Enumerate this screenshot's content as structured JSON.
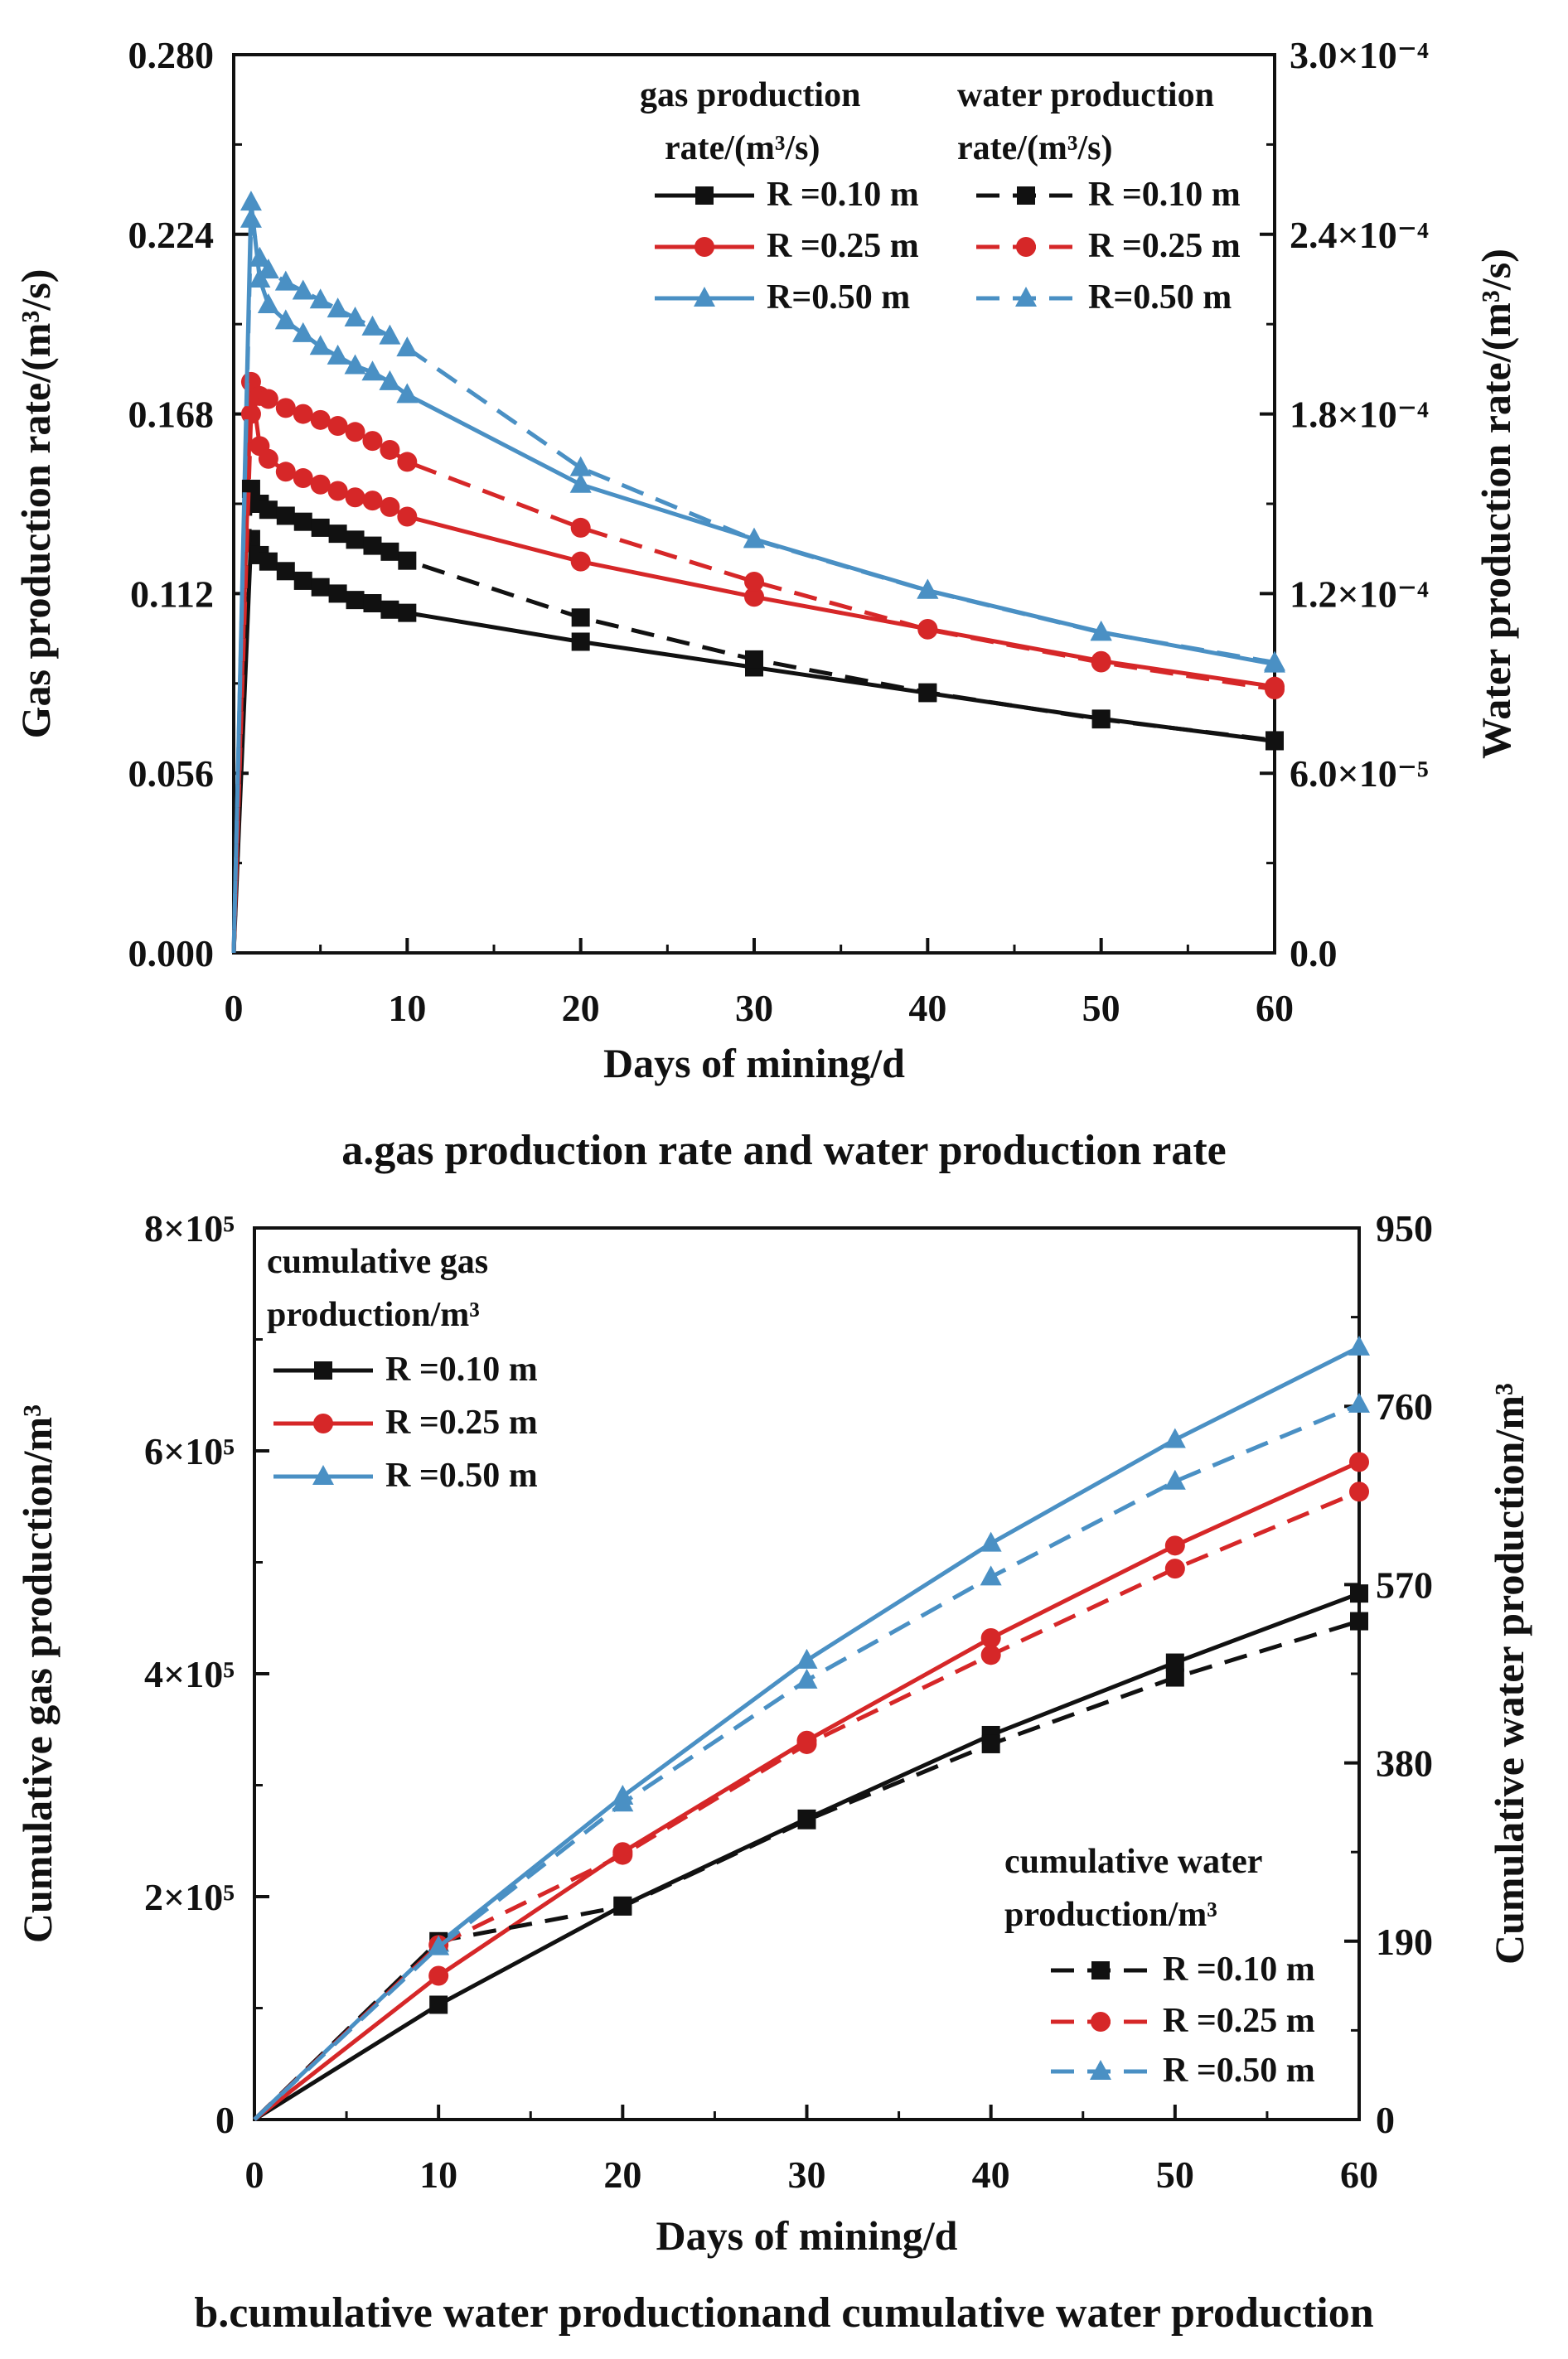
{
  "chart_data": [
    {
      "type": "line",
      "caption": "a.gas production rate and water production rate",
      "xlabel": "Days of mining/d",
      "ylabel_left": "Gas production rate/(m³/s)",
      "ylabel_right": "Water production rate/(m³/s)",
      "xlim": [
        0,
        60
      ],
      "ylim_left": [
        0,
        0.28
      ],
      "ylim_right": [
        0,
        0.0003
      ],
      "x_ticks": [
        "0",
        "10",
        "20",
        "30",
        "40",
        "50",
        "60"
      ],
      "y_left_ticks": [
        "0.000",
        "0.056",
        "0.112",
        "0.168",
        "0.224",
        "0.280"
      ],
      "y_right_ticks": [
        "0.0",
        "6.0×10⁻⁵",
        "1.2×10⁻⁴",
        "1.8×10⁻⁴",
        "2.4×10⁻⁴",
        "3.0×10⁻⁴"
      ],
      "legend_left_title": [
        "gas production",
        "rate/(m³/s)"
      ],
      "legend_right_title": [
        "water production",
        "rate/(m³/s)"
      ],
      "series": [
        {
          "name": "R =0.10 m",
          "axis": "left",
          "style": "solid",
          "marker": "square",
          "color": "#111111",
          "x": [
            0,
            1,
            1.5,
            2,
            3,
            4,
            5,
            6,
            7,
            8,
            9,
            10,
            20,
            30,
            40,
            50,
            60
          ],
          "y": [
            0,
            0.129,
            0.124,
            0.122,
            0.119,
            0.116,
            0.114,
            0.112,
            0.11,
            0.109,
            0.107,
            0.106,
            0.097,
            0.089,
            0.081,
            0.073,
            0.066
          ]
        },
        {
          "name": "R =0.25 m",
          "axis": "left",
          "style": "solid",
          "marker": "circle",
          "color": "#d62728",
          "x": [
            0,
            1,
            1.5,
            2,
            3,
            4,
            5,
            6,
            7,
            8,
            9,
            10,
            20,
            30,
            40,
            50,
            60
          ],
          "y": [
            0,
            0.178,
            0.158,
            0.154,
            0.15,
            0.148,
            0.146,
            0.144,
            0.142,
            0.141,
            0.139,
            0.136,
            0.122,
            0.111,
            0.101,
            0.091,
            0.083
          ]
        },
        {
          "name": "R=0.50 m",
          "axis": "left",
          "style": "solid",
          "marker": "triangle",
          "color": "#4a90c4",
          "x": [
            0,
            1,
            1.5,
            2,
            3,
            4,
            5,
            6,
            7,
            8,
            9,
            10,
            20,
            30,
            40,
            50,
            60
          ],
          "y": [
            0,
            0.234,
            0.21,
            0.202,
            0.197,
            0.193,
            0.189,
            0.186,
            0.183,
            0.181,
            0.178,
            0.174,
            0.146,
            0.129,
            0.113,
            0.1,
            0.09
          ]
        },
        {
          "name": "R =0.10 m",
          "axis": "right",
          "style": "dashed",
          "marker": "square",
          "color": "#111111",
          "x": [
            0,
            1,
            1.5,
            2,
            3,
            4,
            5,
            6,
            7,
            8,
            9,
            10,
            20,
            30,
            40,
            50,
            60
          ],
          "y": [
            0,
            0.000155,
            0.00015,
            0.000148,
            0.000146,
            0.000144,
            0.000142,
            0.00014,
            0.000138,
            0.000136,
            0.000134,
            0.000131,
            0.000112,
            9.8e-05,
            8.7e-05,
            7.8e-05,
            7.1e-05
          ]
        },
        {
          "name": "R =0.25 m",
          "axis": "right",
          "style": "dashed",
          "marker": "circle",
          "color": "#d62728",
          "x": [
            0,
            1,
            1.5,
            2,
            3,
            4,
            5,
            6,
            7,
            8,
            9,
            10,
            20,
            30,
            40,
            50,
            60
          ],
          "y": [
            0,
            0.00018,
            0.000186,
            0.000185,
            0.000182,
            0.00018,
            0.000178,
            0.000176,
            0.000174,
            0.000171,
            0.000168,
            0.000164,
            0.000142,
            0.000124,
            0.000108,
            9.7e-05,
            8.8e-05
          ]
        },
        {
          "name": "R=0.50 m",
          "axis": "right",
          "style": "dashed",
          "marker": "triangle",
          "color": "#4a90c4",
          "x": [
            0,
            1,
            1.5,
            2,
            3,
            4,
            5,
            6,
            7,
            8,
            9,
            10,
            20,
            30,
            40,
            50,
            60
          ],
          "y": [
            0,
            0.000245,
            0.000232,
            0.000228,
            0.000224,
            0.000221,
            0.000218,
            0.000215,
            0.000212,
            0.000209,
            0.000206,
            0.000202,
            0.000162,
            0.000138,
            0.000121,
            0.000107,
            9.7e-05
          ]
        }
      ]
    },
    {
      "type": "line",
      "caption": "b.cumulative water productionand cumulative water production",
      "xlabel": "Days of mining/d",
      "ylabel_left": "Cumulative gas production/m³",
      "ylabel_right": "Cumulative water production/m³",
      "xlim": [
        0,
        60
      ],
      "ylim_left": [
        0,
        800000
      ],
      "ylim_right": [
        0,
        950
      ],
      "x_ticks": [
        "0",
        "10",
        "20",
        "30",
        "40",
        "50",
        "60"
      ],
      "y_left_ticks": [
        "0",
        "2×10⁵",
        "4×10⁵",
        "6×10⁵",
        "8×10⁵"
      ],
      "y_right_ticks": [
        "0",
        "190",
        "380",
        "570",
        "760",
        "950"
      ],
      "legend_left_title": [
        "cumulative gas",
        "production/m³"
      ],
      "legend_right_title": [
        "cumulative water",
        "production/m³"
      ],
      "series": [
        {
          "name": "R =0.10 m",
          "axis": "left",
          "style": "solid",
          "marker": "square",
          "color": "#111111",
          "x": [
            0,
            10,
            20,
            30,
            40,
            50,
            60
          ],
          "y": [
            0,
            103000,
            192000,
            270000,
            345000,
            410000,
            472000
          ]
        },
        {
          "name": "R =0.25 m",
          "axis": "left",
          "style": "solid",
          "marker": "circle",
          "color": "#d62728",
          "x": [
            0,
            10,
            20,
            30,
            40,
            50,
            60
          ],
          "y": [
            0,
            129000,
            240000,
            340000,
            432000,
            515000,
            590000
          ]
        },
        {
          "name": "R =0.50 m",
          "axis": "left",
          "style": "solid",
          "marker": "triangle",
          "color": "#4a90c4",
          "x": [
            0,
            10,
            20,
            30,
            40,
            50,
            60
          ],
          "y": [
            0,
            158000,
            290000,
            412000,
            517000,
            610000,
            693000
          ]
        },
        {
          "name": "R =0.10 m",
          "axis": "right",
          "style": "dashed",
          "marker": "square",
          "color": "#111111",
          "x": [
            0,
            10,
            20,
            30,
            40,
            50,
            60
          ],
          "y": [
            0,
            190,
            227,
            319,
            400,
            471,
            531
          ]
        },
        {
          "name": "R =0.25 m",
          "axis": "right",
          "style": "dashed",
          "marker": "circle",
          "color": "#d62728",
          "x": [
            0,
            10,
            20,
            30,
            40,
            50,
            60
          ],
          "y": [
            0,
            186,
            282,
            400,
            495,
            587,
            669
          ]
        },
        {
          "name": "R =0.50 m",
          "axis": "right",
          "style": "dashed",
          "marker": "triangle",
          "color": "#4a90c4",
          "x": [
            0,
            10,
            20,
            30,
            40,
            50,
            60
          ],
          "y": [
            0,
            184,
            337,
            468,
            578,
            680,
            762
          ]
        }
      ]
    }
  ]
}
